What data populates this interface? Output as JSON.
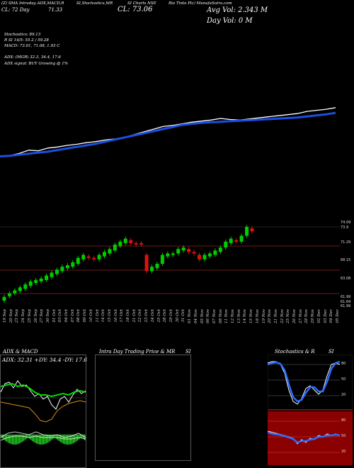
{
  "header": {
    "line1_left": "(Z) ",
    "line1_info": "SMA Intraday ADX,MACD,R",
    "line1_mid": "SI,Stochastics,MR",
    "line1_right": "SI Charts NSE",
    "line1_far": "Rio Tinto Plc) MunafaSutra.com",
    "line2_left": "CL: 72 Day",
    "line2_mid": "71.33",
    "close_label": "CL: 73.06",
    "avg_vol": "Avg Vol: 2.343  M",
    "day_vol": "Day Vol: 0   M"
  },
  "indicators": {
    "stoch": "Stochastics: 89.13",
    "rsi": "R               SI 14/5: 55.2  / 59.28",
    "macd": "MACD: 73.01, 71.08, 1.93  C",
    "adx": "ADX:                         (MGR) 32.3,  34.4,  17.6",
    "adx_signal": "ADX  signal:                        BUY Growing @ 1%"
  },
  "price_labels": [
    "74.09",
    "73.9",
    "71.29",
    "68.15",
    "63.08",
    "61.99",
    "61.64",
    "61.99"
  ],
  "dates": [
    "19 Sep",
    "20 Sep",
    "23 Sep",
    "24 Sep",
    "25 Sep",
    "26 Sep",
    "27 Sep",
    "30 Sep",
    "01 Oct",
    "03 Oct",
    "04 Oct",
    "07 Oct",
    "08 Oct",
    "09 Oct",
    "10 Oct",
    "11 Oct",
    "14 Oct",
    "15 Oct",
    "16 Oct",
    "17 Oct",
    "18 Oct",
    "21 Oct",
    "22 Oct",
    "23 Oct",
    "24 Oct",
    "25 Oct",
    "28 Oct",
    "29 Oct",
    "30 Oct",
    "31 Oct",
    "01 Nov",
    "04 Nov",
    "05 Nov",
    "06 Nov",
    "07 Nov",
    "08 Nov",
    "11 Nov",
    "12 Nov",
    "13 Nov",
    "14 Nov",
    "15 Nov",
    "18 Nov",
    "19 Nov",
    "20 Nov",
    "21 Nov",
    "22 Nov",
    "25 Nov",
    "26 Nov",
    "27 Nov",
    "28 Nov",
    "29 Nov",
    "02 Dec",
    "03 Dec",
    "04 Dec",
    "05 Dec"
  ],
  "panels": {
    "adx_title": "ADX  & MACD",
    "adx_values": "ADX: 32.31  +DY: 34.4  -DY: 17.6",
    "intraday_title": "Intra Day Trading Price  & MR",
    "intraday_title2": "SI",
    "stoch_title": "Stochastics & R",
    "stoch_title2": "SI"
  },
  "stoch_levels": [
    "80",
    "50",
    "20"
  ],
  "rsi_levels": [
    "80",
    "50",
    "20"
  ],
  "colors": {
    "background": "#000000",
    "ma_line": "#1a4fe0",
    "price_line": "#ffffff",
    "up_candle": "#00cc00",
    "down_candle": "#dd1111",
    "grid": "#6b1a1a",
    "rsi_bg": "#8b0000"
  },
  "chart_data": {
    "type": "line",
    "title": "",
    "series": [
      {
        "values": [
          0.05,
          0.06,
          0.1,
          0.16,
          0.15,
          0.2,
          0.22,
          0.25,
          0.27,
          0.3,
          0.32,
          0.35,
          0.37,
          0.4,
          0.45,
          0.5,
          0.55,
          0.6,
          0.62,
          0.65,
          0.68,
          0.7,
          0.72,
          0.75,
          0.73,
          0.72,
          0.74,
          0.76,
          0.78,
          0.8,
          0.82,
          0.84,
          0.88,
          0.9,
          0.92,
          0.95
        ]
      },
      {
        "values": [
          0.02,
          0.03,
          0.05,
          0.07,
          0.09,
          0.11,
          0.14,
          0.17,
          0.2,
          0.23,
          0.26,
          0.3,
          0.34,
          0.38,
          0.42,
          0.46,
          0.5,
          0.54,
          0.58,
          0.62,
          0.64,
          0.66,
          0.67,
          0.68,
          0.69,
          0.7,
          0.71,
          0.72,
          0.73,
          0.74,
          0.75,
          0.76,
          0.78,
          0.8,
          0.82,
          0.85
        ]
      }
    ]
  }
}
